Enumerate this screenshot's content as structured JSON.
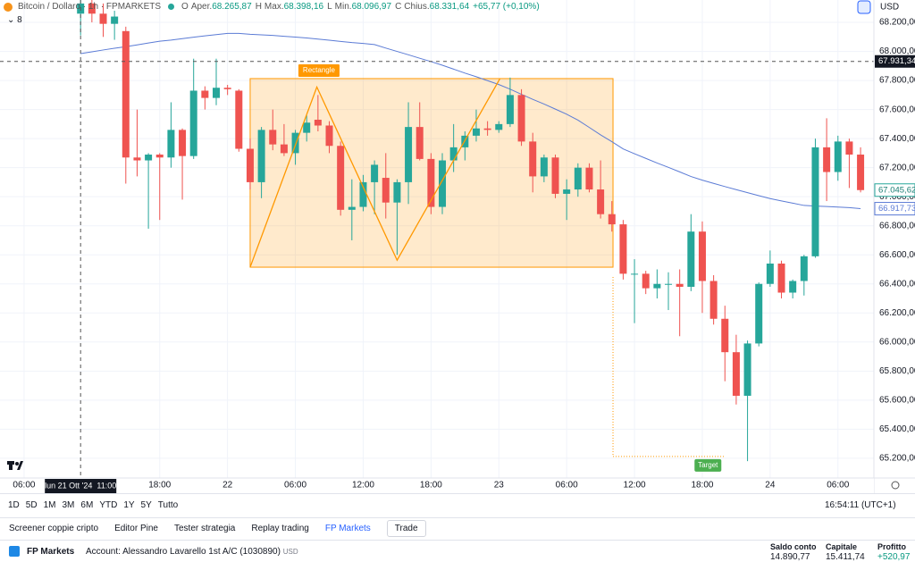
{
  "header": {
    "symbol": "Bitcoin / Dollaro · 1h · FPMARKETS",
    "ohlc": [
      {
        "key": "O",
        "name": "Aper.",
        "value": "68.265,87"
      },
      {
        "key": "H",
        "name": "Max.",
        "value": "68.398,16"
      },
      {
        "key": "L",
        "name": "Min.",
        "value": "68.096,97"
      },
      {
        "key": "C",
        "name": "Chius.",
        "value": "68.331,64"
      }
    ],
    "change": "+65,77 (+0,10%)",
    "indicators": "8"
  },
  "chart_data": {
    "type": "candlestick",
    "currency": "USD",
    "up_color": "#26a69a",
    "down_color": "#ef5350",
    "grid": true,
    "categories": [
      null,
      null,
      null,
      null,
      null,
      null,
      null,
      null,
      null,
      null,
      null,
      null,
      null,
      null,
      null,
      null,
      null,
      null,
      null,
      null,
      null,
      null,
      null,
      null,
      null,
      null,
      null,
      null,
      null,
      null,
      null,
      null,
      null,
      null,
      null,
      null,
      null,
      null,
      null,
      null,
      null,
      null,
      null,
      null,
      null,
      null,
      null,
      null,
      null,
      null,
      null,
      null,
      null,
      null,
      null,
      null,
      null,
      null,
      null,
      null,
      null,
      null,
      null,
      null,
      null,
      null,
      null,
      null,
      null,
      null
    ],
    "open": [
      68260,
      68330,
      68260,
      68190,
      68140,
      67270,
      67250,
      67290,
      67270,
      67460,
      67280,
      67730,
      67680,
      67750,
      67730,
      67330,
      67100,
      67460,
      67360,
      67300,
      67440,
      67530,
      67490,
      67350,
      66910,
      66930,
      67100,
      67130,
      66960,
      67100,
      67480,
      67260,
      66930,
      67250,
      67340,
      67420,
      67470,
      67460,
      67500,
      67700,
      67380,
      67140,
      67270,
      67020,
      67050,
      67200,
      67050,
      66880,
      66810,
      66470,
      66470,
      66370,
      66400,
      66400,
      66380,
      66760,
      66420,
      66160,
      65930,
      65630,
      65990,
      66400,
      66540,
      66340,
      66420,
      66590,
      67340,
      67170,
      67380,
      67290
    ],
    "high": [
      68420,
      68400,
      68330,
      68280,
      68170,
      67600,
      67300,
      67300,
      67650,
      67470,
      67950,
      67760,
      67950,
      67770,
      67740,
      67400,
      67480,
      67600,
      67500,
      67460,
      67560,
      67700,
      67520,
      67380,
      67120,
      67150,
      67250,
      67300,
      67120,
      67650,
      67650,
      67300,
      67300,
      67500,
      67450,
      67600,
      67520,
      67520,
      67820,
      67740,
      67440,
      67290,
      67290,
      67120,
      67230,
      67230,
      67250,
      66970,
      66840,
      66570,
      66490,
      66500,
      66480,
      66500,
      66880,
      66830,
      66460,
      66250,
      66050,
      66010,
      66410,
      66630,
      66560,
      66430,
      66600,
      67400,
      67540,
      67420,
      67400,
      67340
    ],
    "low": [
      68110,
      68200,
      68100,
      68080,
      67090,
      67140,
      66780,
      66840,
      67200,
      66980,
      67260,
      67600,
      67630,
      67700,
      67310,
      67050,
      66990,
      67320,
      67280,
      67220,
      67380,
      67450,
      67300,
      66870,
      66700,
      66900,
      66880,
      66850,
      66600,
      66950,
      67250,
      66880,
      66880,
      67170,
      67250,
      67380,
      67420,
      67440,
      67480,
      67350,
      67030,
      67100,
      66990,
      66840,
      67000,
      67030,
      66850,
      66760,
      66430,
      66130,
      66330,
      66300,
      66220,
      66040,
      66350,
      66200,
      66120,
      65730,
      65570,
      65180,
      65970,
      66380,
      66300,
      66300,
      66320,
      66580,
      66970,
      67110,
      67060,
      67030
    ],
    "close": [
      68330,
      68260,
      68190,
      68240,
      67270,
      67250,
      67290,
      67270,
      67460,
      67280,
      67730,
      67680,
      67750,
      67740,
      67330,
      67100,
      67460,
      67360,
      67300,
      67440,
      67510,
      67490,
      67350,
      66910,
      66930,
      67100,
      67220,
      66960,
      67100,
      67480,
      67260,
      66930,
      67250,
      67340,
      67420,
      67470,
      67460,
      67500,
      67700,
      67380,
      67140,
      67270,
      67020,
      67050,
      67200,
      67050,
      66880,
      66810,
      66470,
      66470,
      66370,
      66400,
      66400,
      66380,
      66760,
      66420,
      66160,
      65930,
      65630,
      65990,
      66400,
      66540,
      66340,
      66420,
      66590,
      67340,
      67170,
      67380,
      67290,
      67045.62
    ],
    "moving_average": {
      "color": "#5b7bd5",
      "values": [
        67985,
        67997,
        68010,
        68022,
        68033,
        68045,
        68058,
        68070,
        68078,
        68088,
        68098,
        68107,
        68116,
        68124,
        68124,
        68118,
        68114,
        68110,
        68104,
        68099,
        68093,
        68085,
        68077,
        68069,
        68061,
        68055,
        68047,
        68023,
        68000,
        67977,
        67953,
        67930,
        67905,
        67878,
        67851,
        67826,
        67799,
        67772,
        67740,
        67705,
        67670,
        67638,
        67603,
        67568,
        67527,
        67477,
        67426,
        67379,
        67329,
        67296,
        67264,
        67232,
        67202,
        67171,
        67139,
        67114,
        67092,
        67070,
        67049,
        67028,
        67007,
        66987,
        66971,
        66956,
        66940,
        66936,
        66933,
        66929,
        66925,
        66917.73
      ]
    },
    "xlim": [
      -7.13,
      70.18
    ],
    "ylim": [
      65064,
      68354
    ],
    "yticks": [
      {
        "value": 65200,
        "label": "65.200,00"
      },
      {
        "value": 65400,
        "label": "65.400,00"
      },
      {
        "value": 65600,
        "label": "65.600,00"
      },
      {
        "value": 65800,
        "label": "65.800,00"
      },
      {
        "value": 66000,
        "label": "66.000,00"
      },
      {
        "value": 66200,
        "label": "66.200,00"
      },
      {
        "value": 66400,
        "label": "66.400,00"
      },
      {
        "value": 66600,
        "label": "66.600,00"
      },
      {
        "value": 66800,
        "label": "66.800,00"
      },
      {
        "value": 67000,
        "label": "67.000,00"
      },
      {
        "value": 67200,
        "label": "67.200,00"
      },
      {
        "value": 67400,
        "label": "67.400,00"
      },
      {
        "value": 67600,
        "label": "67.600,00"
      },
      {
        "value": 67800,
        "label": "67.800,00"
      },
      {
        "value": 68000,
        "label": "68.000,00"
      },
      {
        "value": 68200,
        "label": "68.200,00"
      }
    ],
    "xticks": [
      {
        "value": -5,
        "label": "06:00"
      },
      {
        "value": 7,
        "label": "18:00"
      },
      {
        "value": 13,
        "label": "22"
      },
      {
        "value": 19,
        "label": "06:00"
      },
      {
        "value": 25,
        "label": "12:00"
      },
      {
        "value": 31,
        "label": "18:00"
      },
      {
        "value": 37,
        "label": "23"
      },
      {
        "value": 43,
        "label": "06:00"
      },
      {
        "value": 49,
        "label": "12:00"
      },
      {
        "value": 55,
        "label": "18:00"
      },
      {
        "value": 61,
        "label": "24"
      },
      {
        "value": 67,
        "label": "06:00"
      }
    ],
    "crosshair_price": {
      "value": 67931.34,
      "label": "67.931,34"
    },
    "crosshair_time": {
      "value": 0,
      "label": "lun 21 Ott '24  11:00"
    },
    "last_price": {
      "value": 67045.62,
      "label": "67.045,62"
    },
    "ma_price": {
      "value": 66917.73,
      "label": "66.917,73"
    },
    "rectangle": {
      "label": "Rectangle",
      "time": [
        15,
        47.1
      ],
      "price": [
        66515,
        67813
      ]
    },
    "zigzag": {
      "time": [
        15,
        20.9,
        28,
        37.1
      ],
      "price": [
        66515,
        67755,
        66563,
        67813
      ]
    },
    "target": {
      "label": "Target",
      "time": [
        47.1,
        47.1,
        57
      ],
      "price": [
        66448,
        65212,
        65212
      ]
    }
  },
  "toolbar": {
    "ranges": [
      "1D",
      "5D",
      "1M",
      "3M",
      "6M",
      "YTD",
      "1Y",
      "5Y",
      "Tutto"
    ],
    "clock": "16:54:11 (UTC+1)"
  },
  "tabs": [
    "Screener coppie cripto",
    "Editor Pine",
    "Tester strategia",
    "Replay trading",
    "FP Markets",
    "Trade"
  ],
  "account": {
    "broker": "FP Markets",
    "name": "Account: Alessandro Lavarello 1st A/C (1030890)",
    "currency": "USD",
    "stats": [
      {
        "label": "Saldo conto",
        "value": "14.890,77"
      },
      {
        "label": "Capitale",
        "value": "15.411,74"
      },
      {
        "label": "Profitto",
        "value": "+520,97"
      }
    ]
  }
}
